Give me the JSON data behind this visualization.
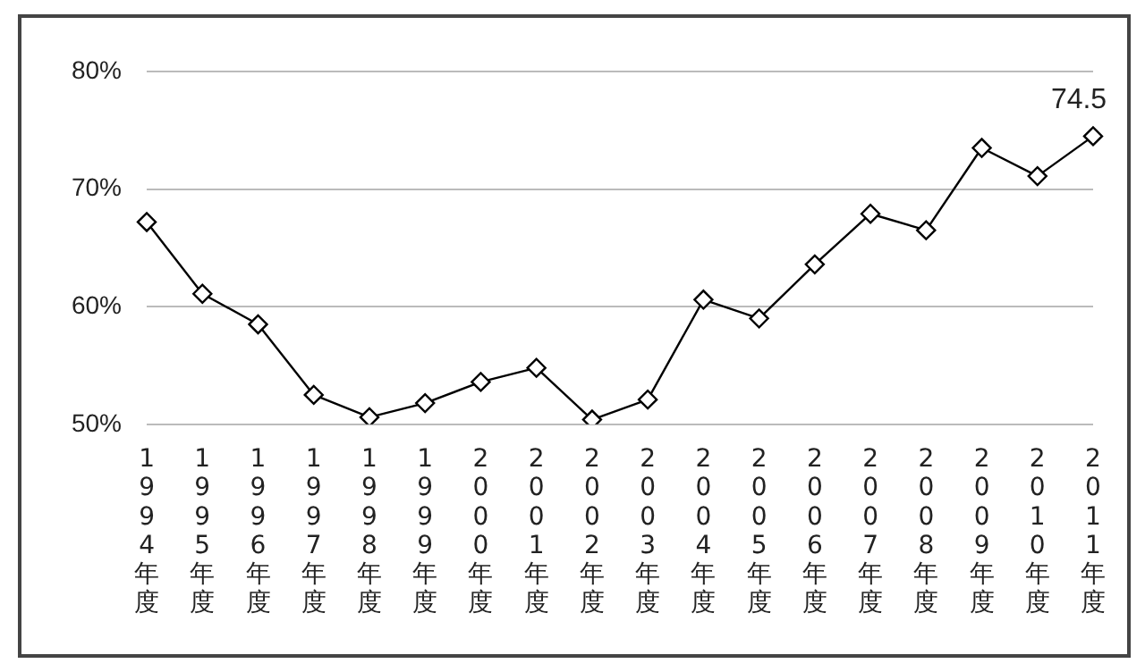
{
  "chart_data": {
    "type": "line",
    "categories": [
      "1994年度",
      "1995年度",
      "1996年度",
      "1997年度",
      "1998年度",
      "1999年度",
      "2000年度",
      "2001年度",
      "2002年度",
      "2003年度",
      "2004年度",
      "2005年度",
      "2006年度",
      "2007年度",
      "2008年度",
      "2009年度",
      "2010年度",
      "2011年度"
    ],
    "series": [
      {
        "color": "#000000",
        "values": [
          67.2,
          61.1,
          58.5,
          52.5,
          50.6,
          51.8,
          53.6,
          54.8,
          50.4,
          52.1,
          60.6,
          59.0,
          63.6,
          67.9,
          66.5,
          73.5,
          71.1,
          74.5
        ],
        "value_labels": [
          null,
          null,
          null,
          null,
          null,
          null,
          null,
          null,
          null,
          null,
          null,
          null,
          null,
          null,
          null,
          null,
          null,
          "74.5"
        ]
      }
    ],
    "ylim": [
      50,
      80
    ],
    "yticks": [
      {
        "value": 50,
        "label": "50%"
      },
      {
        "value": 60,
        "label": "60%"
      },
      {
        "value": 70,
        "label": "70%"
      },
      {
        "value": 80,
        "label": "80%"
      }
    ],
    "grid": "y",
    "legend": false,
    "marker": "diamond",
    "line_style": "solid"
  }
}
